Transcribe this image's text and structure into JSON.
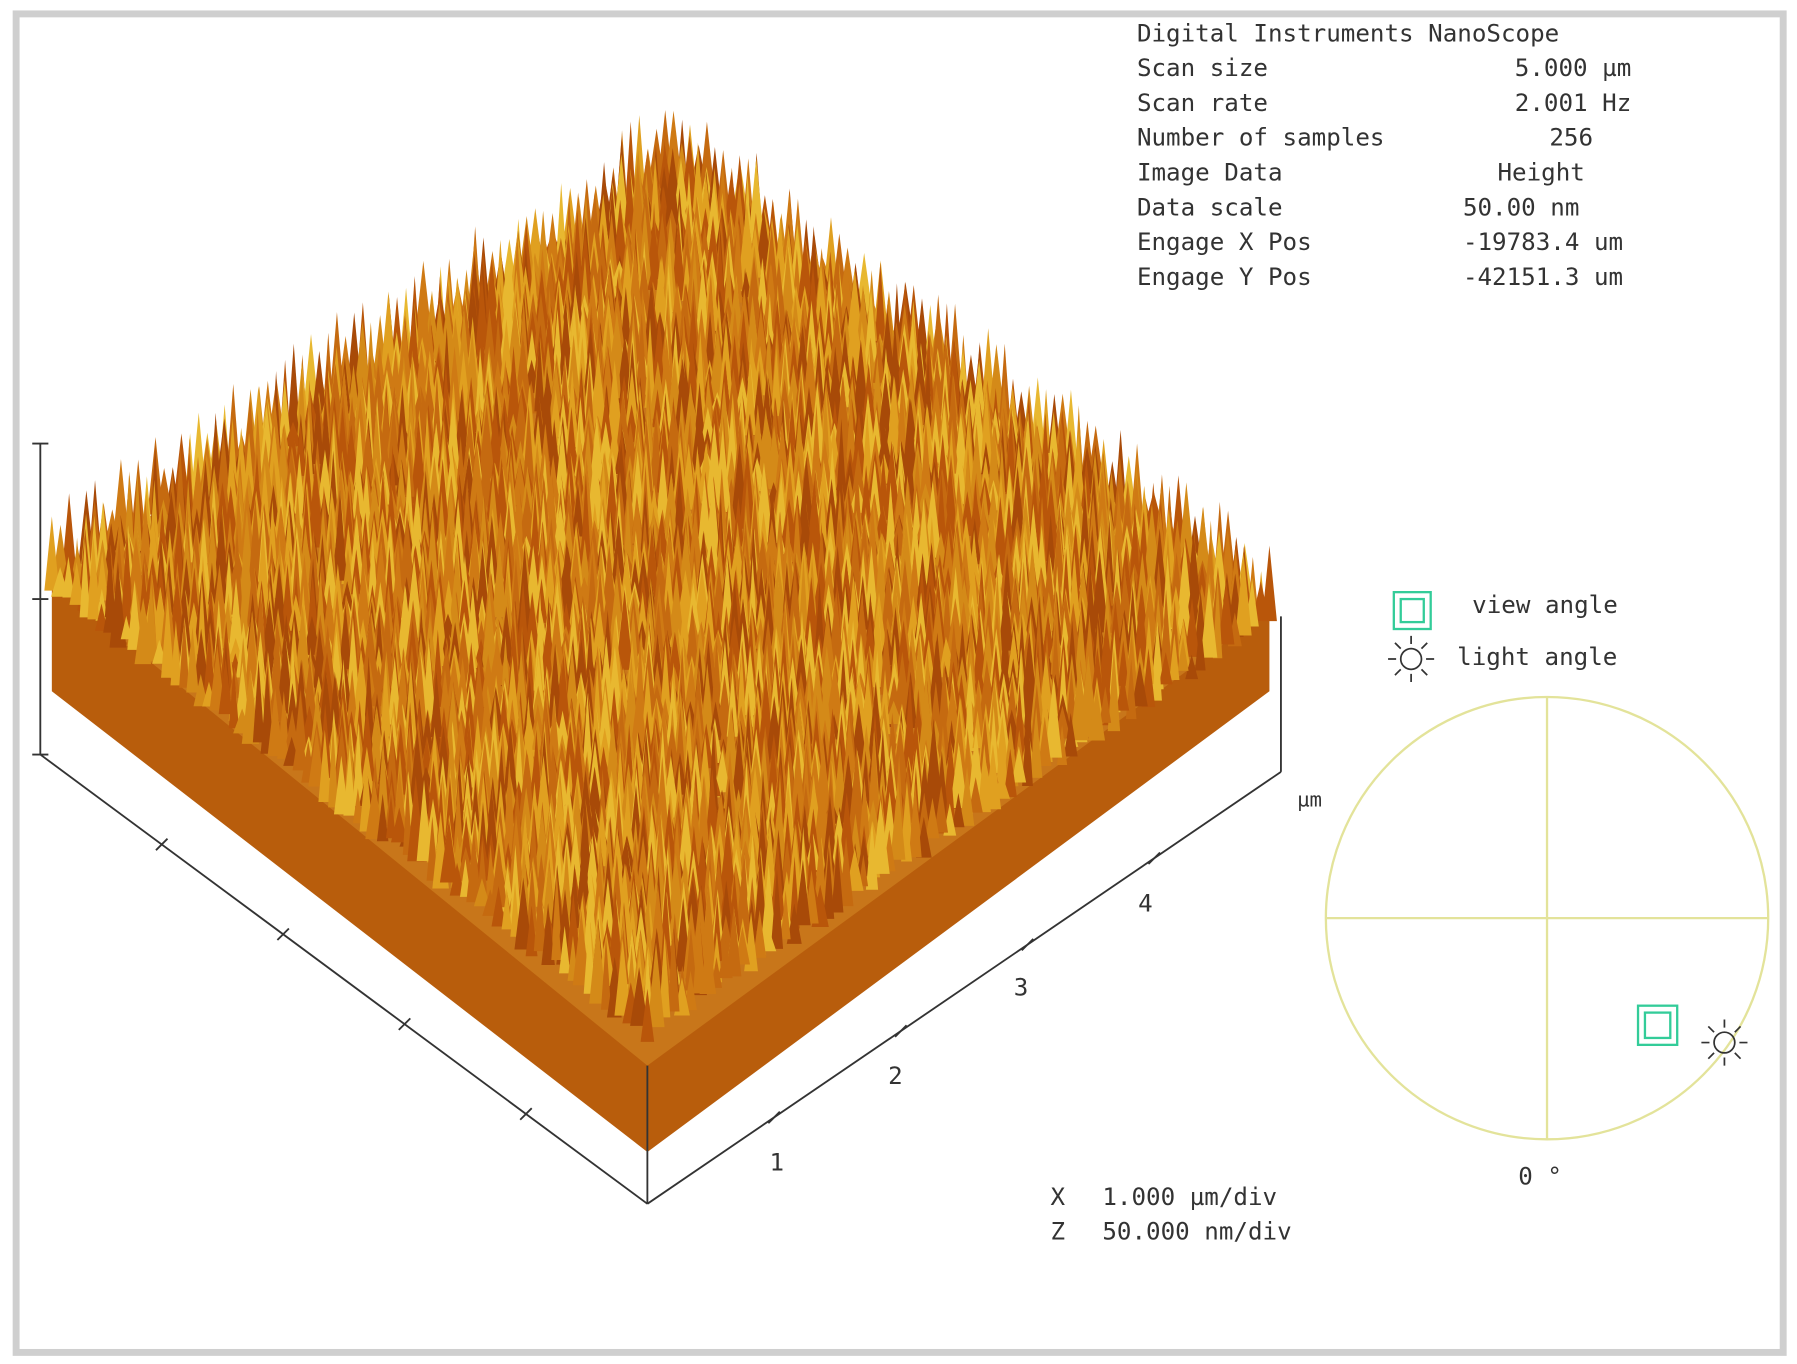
{
  "header": {
    "title": "Digital Instruments NanoScope",
    "rows": [
      [
        "Scan size",
        "5.000 µm"
      ],
      [
        "Scan rate",
        "2.001 Hz"
      ],
      [
        "Number of samples",
        "256"
      ],
      [
        "Image Data",
        "Height"
      ],
      [
        "Data scale",
        "50.00 nm"
      ],
      [
        "Engage X Pos",
        "-19783.4 um"
      ],
      [
        "Engage Y Pos",
        "-42151.3 um"
      ]
    ]
  },
  "plot": {
    "axis_labels": [
      "1",
      "2",
      "3",
      "4"
    ],
    "unit": "µm"
  },
  "legend": {
    "view": "view angle",
    "light": "light angle"
  },
  "orientation": {
    "angle": "0 °"
  },
  "scale": {
    "x": [
      "X",
      "1.000 µm/div"
    ],
    "z": [
      "Z",
      "50.000 nm/div"
    ]
  }
}
